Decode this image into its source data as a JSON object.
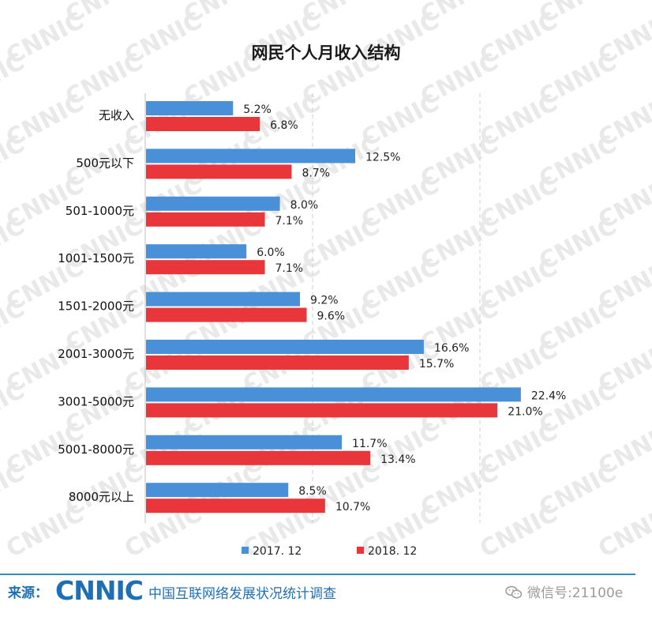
{
  "watermark": {
    "text": "CNNIC"
  },
  "chart_data": {
    "type": "bar",
    "orientation": "horizontal",
    "title": "网民个人月收入结构",
    "categories": [
      "无收入",
      "500元以下",
      "501-1000元",
      "1001-1500元",
      "1501-2000元",
      "2001-3000元",
      "3001-5000元",
      "5001-8000元",
      "8000元以上"
    ],
    "series": [
      {
        "name": "2017. 12",
        "color": "#4a90d9",
        "values": [
          5.2,
          12.5,
          8.0,
          6.0,
          9.2,
          16.6,
          22.4,
          11.7,
          8.5
        ],
        "labels": [
          "5.2%",
          "12.5%",
          "8.0%",
          "6.0%",
          "9.2%",
          "16.6%",
          "22.4%",
          "11.7%",
          "8.5%"
        ]
      },
      {
        "name": "2018. 12",
        "color": "#e8363a",
        "values": [
          6.8,
          8.7,
          7.1,
          7.1,
          9.6,
          15.7,
          21.0,
          13.4,
          10.7
        ],
        "labels": [
          "6.8%",
          "8.7%",
          "7.1%",
          "7.1%",
          "9.6%",
          "15.7%",
          "21.0%",
          "13.4%",
          "10.7%"
        ]
      }
    ],
    "xlim": [
      0,
      25
    ],
    "grid": "vertical dashed",
    "legend": "bottom"
  },
  "footer": {
    "source_label": "来源：",
    "logo_text": "CNNIC",
    "organization": "中国互联网络发展状况统计调查",
    "wechat_text": "微信号:21100e"
  }
}
